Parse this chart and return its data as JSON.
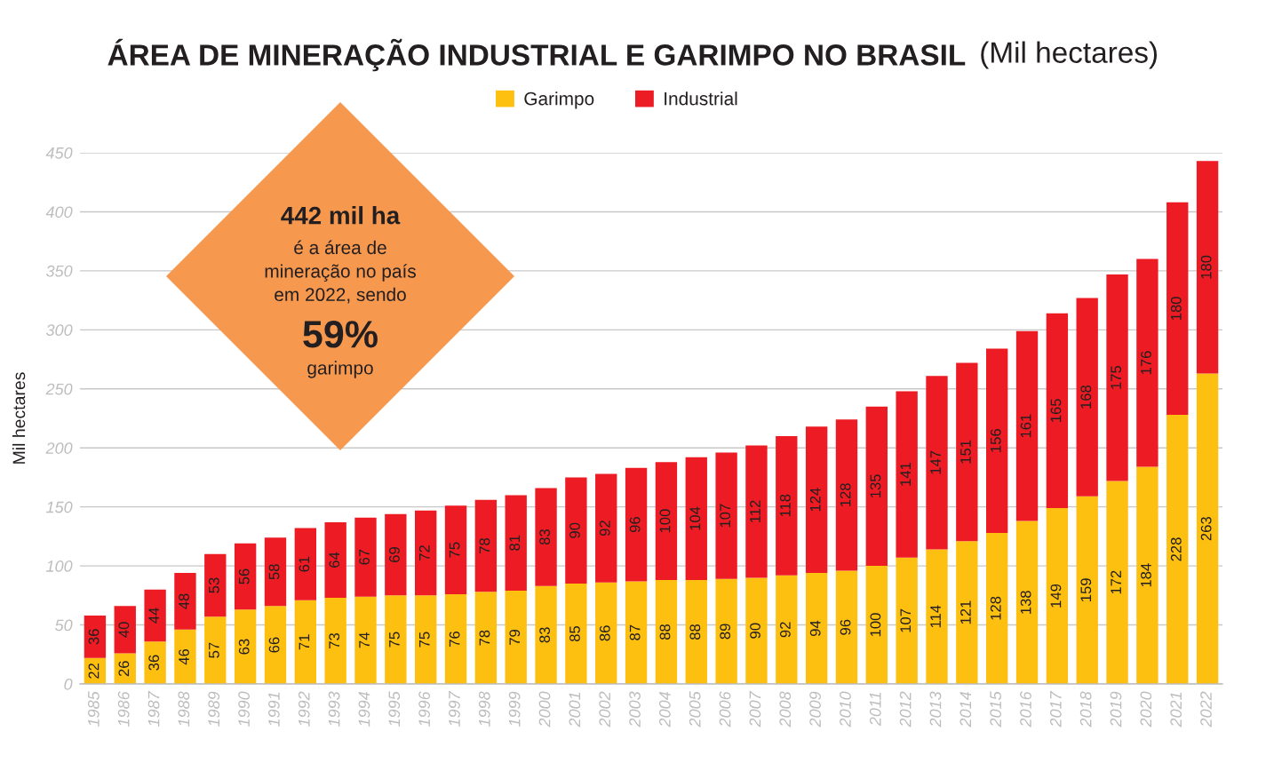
{
  "chart_data": {
    "type": "bar",
    "title": "ÁREA DE MINERAÇÃO INDUSTRIAL E GARIMPO NO BRASIL",
    "subtitle": "(Mil hectares)",
    "ylabel": "Mil hectares",
    "categories": [
      "1985",
      "1986",
      "1987",
      "1988",
      "1989",
      "1990",
      "1991",
      "1992",
      "1993",
      "1994",
      "1995",
      "1996",
      "1997",
      "1998",
      "1999",
      "2000",
      "2001",
      "2002",
      "2003",
      "2004",
      "2005",
      "2006",
      "2007",
      "2008",
      "2009",
      "2010",
      "2011",
      "2012",
      "2013",
      "2014",
      "2015",
      "2016",
      "2017",
      "2018",
      "2019",
      "2020",
      "2021",
      "2022"
    ],
    "series": [
      {
        "name": "Garimpo",
        "color": "#fdc010",
        "values": [
          22,
          26,
          36,
          46,
          57,
          63,
          66,
          71,
          73,
          74,
          75,
          75,
          76,
          78,
          79,
          83,
          85,
          86,
          87,
          88,
          88,
          89,
          90,
          92,
          94,
          96,
          100,
          107,
          114,
          121,
          128,
          138,
          149,
          159,
          172,
          184,
          228,
          263
        ]
      },
      {
        "name": "Industrial",
        "color": "#ed1c24",
        "values": [
          36,
          40,
          44,
          48,
          53,
          56,
          58,
          61,
          64,
          67,
          69,
          72,
          75,
          78,
          81,
          83,
          90,
          92,
          96,
          100,
          104,
          107,
          112,
          118,
          124,
          128,
          135,
          141,
          147,
          151,
          156,
          161,
          165,
          168,
          175,
          176,
          180,
          180
        ]
      }
    ],
    "stacked": true,
    "data_labels": true,
    "ylim": [
      0,
      450
    ],
    "yticks": [
      0,
      50,
      100,
      150,
      200,
      250,
      300,
      350,
      400,
      450
    ],
    "grid": "y",
    "legend": "top",
    "annotations": [
      "442 mil ha",
      "é a área de\nmineração no país\nem 2022, sendo",
      "59%",
      "garimpo"
    ]
  }
}
